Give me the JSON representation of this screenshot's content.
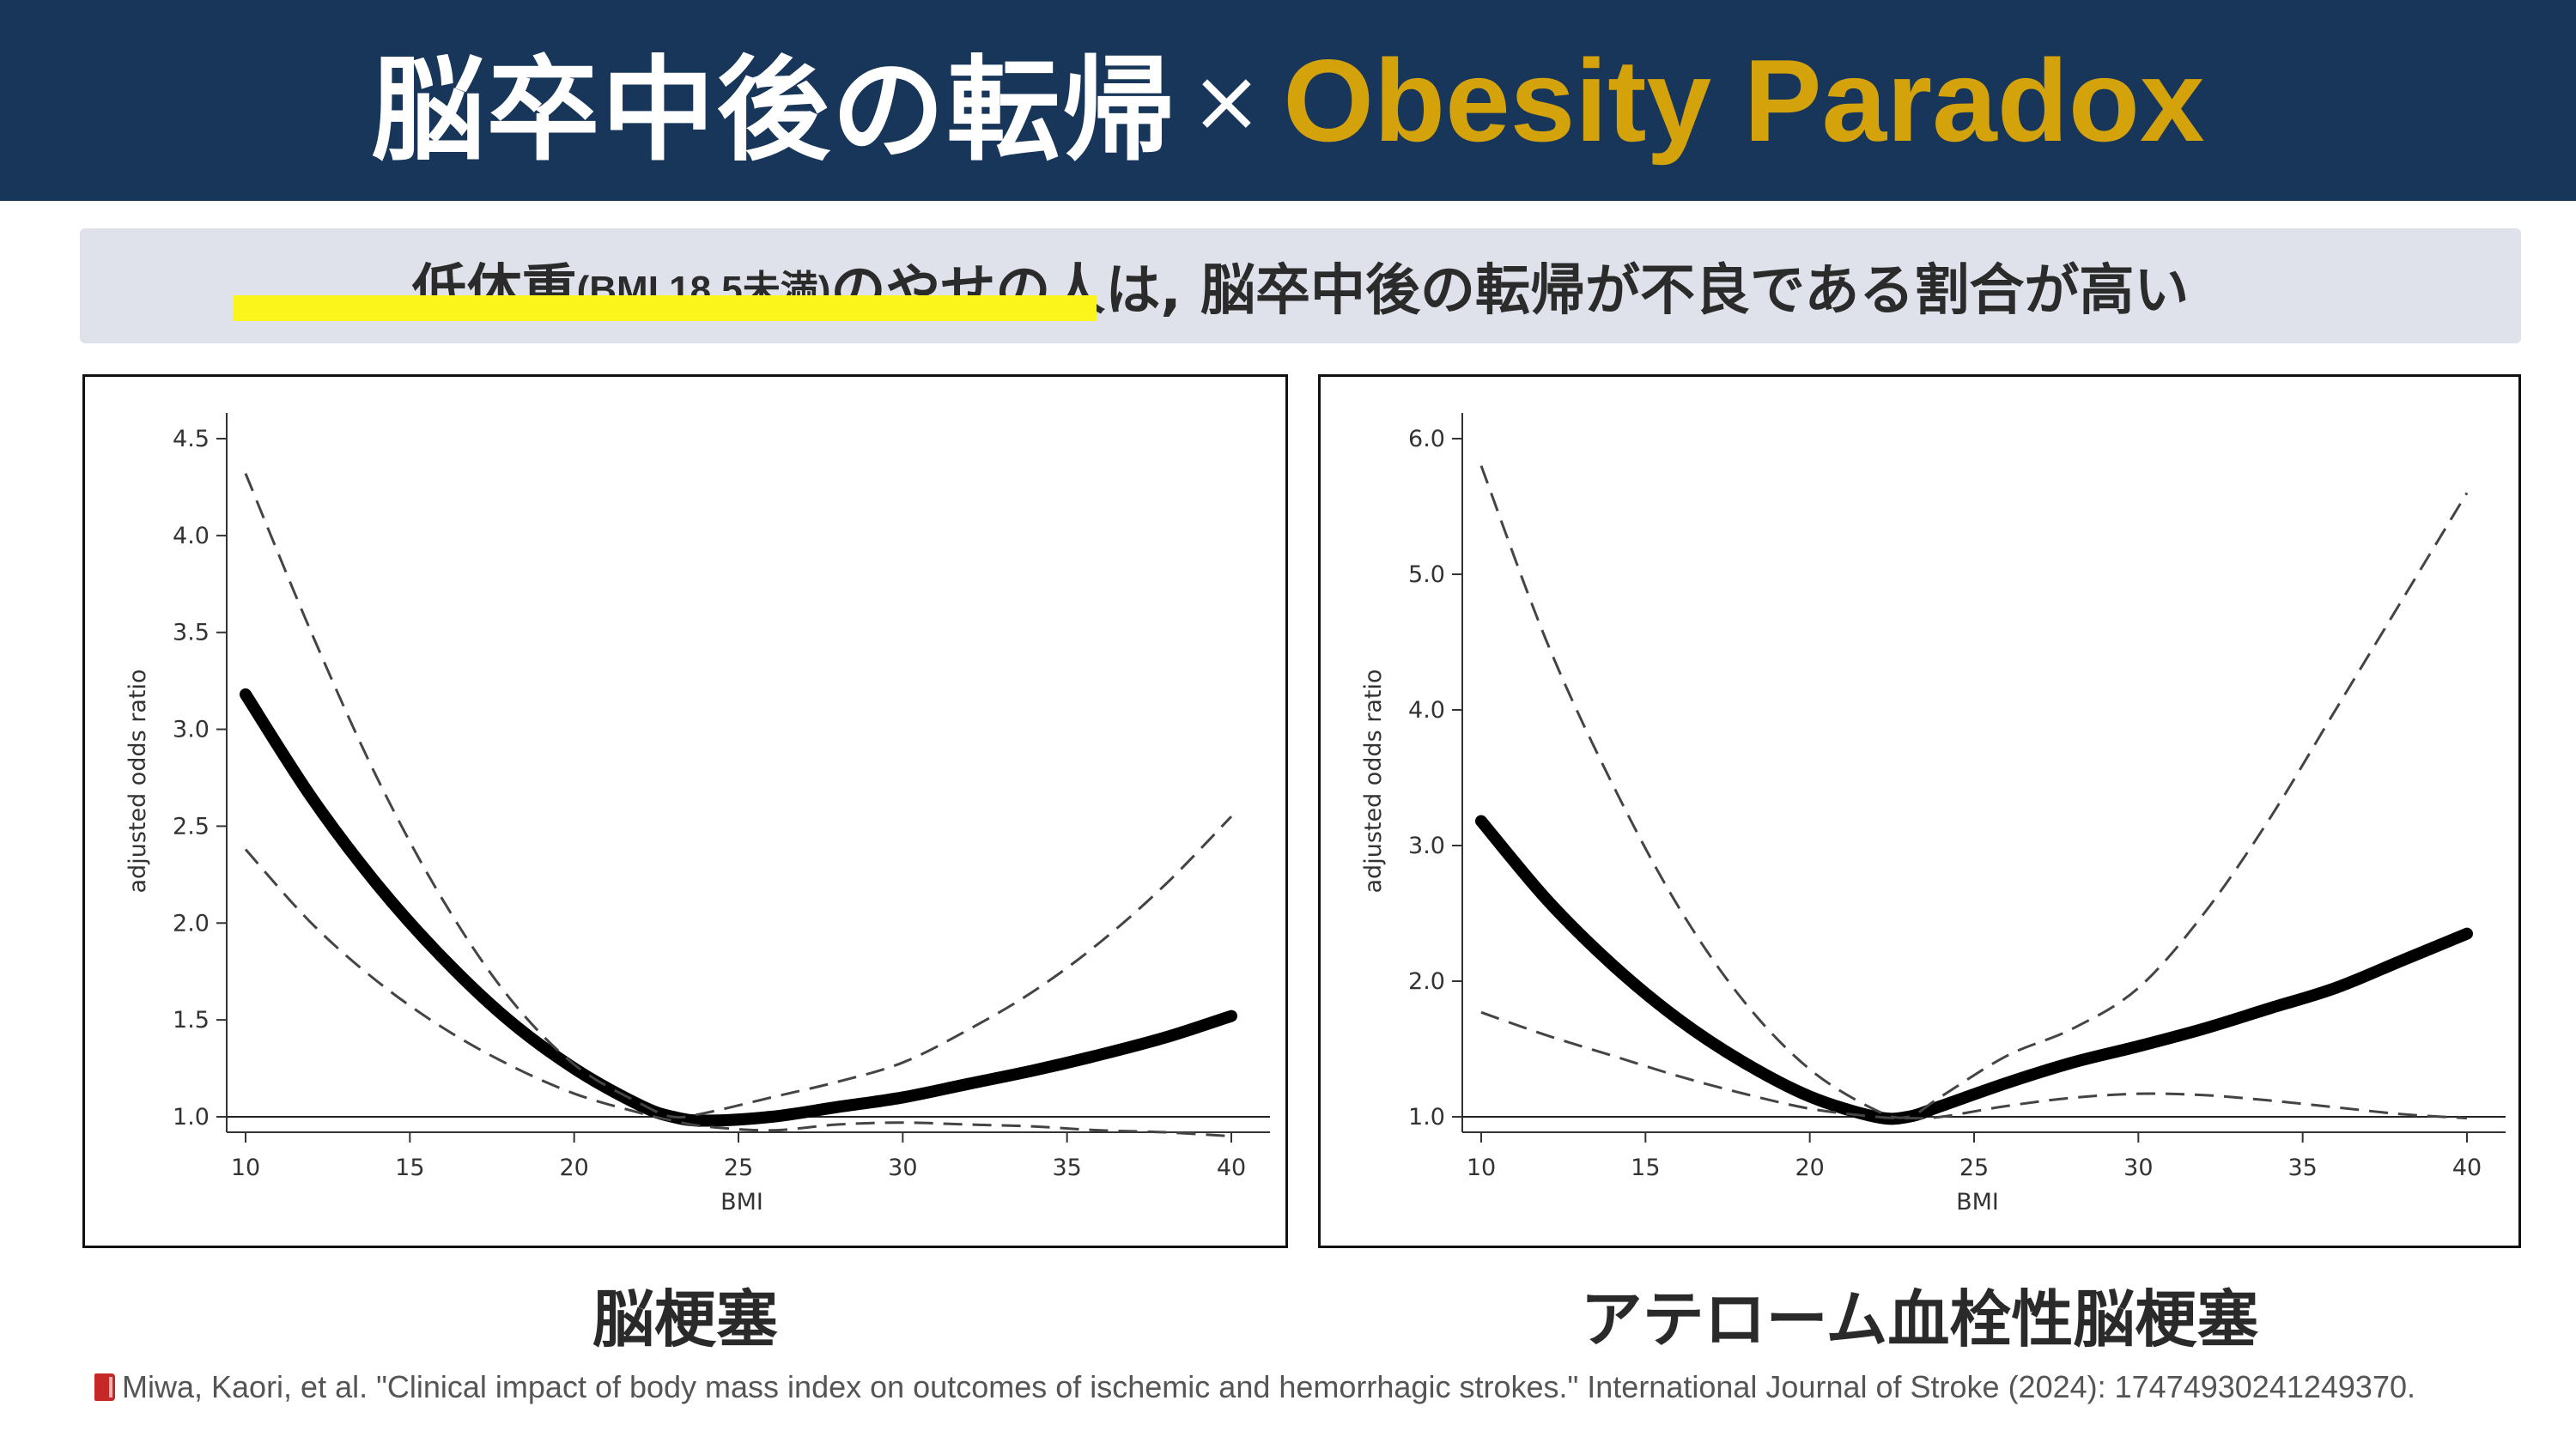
{
  "header": {
    "title_main": "脳卒中後の転帰",
    "title_times": "×",
    "title_accent": "Obesity Paradox"
  },
  "subtitle": {
    "part1": "低体重",
    "part2": "(BMI 18.5未満)",
    "part3": "のやせの人は, 脳卒中後の転帰が不良である割合が高い"
  },
  "colors": {
    "header_bg": "#17365a",
    "accent": "#d4a20b",
    "subtitle_bg": "#dfe2ea",
    "highlight": "#fbf51b"
  },
  "panels": [
    {
      "caption": "脳梗塞"
    },
    {
      "caption": "アテローム血栓性脳梗塞"
    }
  ],
  "citation": {
    "icon": "book-icon",
    "text": "Miwa, Kaori, et al. \"Clinical impact of body mass index on outcomes of ischemic and hemorrhagic strokes.\" International Journal of Stroke (2024): 17474930241249370."
  },
  "chart_data": [
    {
      "type": "line",
      "xlabel": "BMI",
      "ylabel": "adjusted odds ratio",
      "xlim": [
        10,
        40
      ],
      "ylim": [
        1.0,
        4.5
      ],
      "xticks": [
        "10",
        "15",
        "20",
        "25",
        "30",
        "35",
        "40"
      ],
      "yticks": [
        "1.0",
        "1.5",
        "2.0",
        "2.5",
        "3.0",
        "3.5",
        "4.0",
        "4.5"
      ],
      "reference_line": 1.0,
      "grid": false,
      "series": [
        {
          "style": "solid-thick",
          "x": [
            10,
            12,
            14,
            16,
            18,
            20,
            22,
            23,
            24,
            26,
            28,
            30,
            32,
            34,
            36,
            38,
            40
          ],
          "y": [
            3.18,
            2.65,
            2.2,
            1.82,
            1.5,
            1.25,
            1.06,
            1.0,
            0.98,
            1.0,
            1.05,
            1.1,
            1.17,
            1.24,
            1.32,
            1.41,
            1.52
          ]
        },
        {
          "style": "dashed",
          "x": [
            10,
            12,
            14,
            16,
            18,
            20,
            22,
            23,
            24,
            26,
            28,
            30,
            32,
            34,
            36,
            38,
            40
          ],
          "y": [
            4.32,
            3.5,
            2.75,
            2.12,
            1.62,
            1.27,
            1.07,
            1.0,
            1.02,
            1.1,
            1.18,
            1.28,
            1.45,
            1.65,
            1.9,
            2.2,
            2.55
          ]
        },
        {
          "style": "dashed",
          "x": [
            10,
            12,
            14,
            16,
            18,
            20,
            22,
            23,
            24,
            26,
            28,
            30,
            32,
            34,
            36,
            38,
            40
          ],
          "y": [
            2.38,
            2.0,
            1.7,
            1.46,
            1.27,
            1.12,
            1.02,
            0.98,
            0.95,
            0.93,
            0.96,
            0.97,
            0.96,
            0.95,
            0.93,
            0.92,
            0.9
          ]
        }
      ]
    },
    {
      "type": "line",
      "xlabel": "BMI",
      "ylabel": "adjusted odds ratio",
      "xlim": [
        10,
        40
      ],
      "ylim": [
        1.0,
        6.0
      ],
      "xticks": [
        "10",
        "15",
        "20",
        "25",
        "30",
        "35",
        "40"
      ],
      "yticks": [
        "1.0",
        "2.0",
        "3.0",
        "4.0",
        "5.0",
        "6.0"
      ],
      "reference_line": 1.0,
      "grid": false,
      "series": [
        {
          "style": "solid-thick",
          "x": [
            10,
            12,
            14,
            16,
            18,
            20,
            22,
            23,
            24,
            26,
            28,
            30,
            32,
            34,
            36,
            38,
            40
          ],
          "y": [
            3.18,
            2.6,
            2.12,
            1.72,
            1.4,
            1.15,
            1.0,
            1.0,
            1.08,
            1.25,
            1.4,
            1.52,
            1.65,
            1.8,
            1.95,
            2.15,
            2.35
          ]
        },
        {
          "style": "dashed",
          "x": [
            10,
            12,
            14,
            16,
            18,
            20,
            22,
            23,
            24,
            26,
            28,
            30,
            32,
            34,
            36,
            38,
            40
          ],
          "y": [
            5.8,
            4.5,
            3.45,
            2.55,
            1.85,
            1.35,
            1.05,
            1.0,
            1.15,
            1.45,
            1.65,
            1.95,
            2.5,
            3.2,
            4.0,
            4.8,
            5.6
          ]
        },
        {
          "style": "dashed",
          "x": [
            10,
            12,
            14,
            16,
            18,
            20,
            22,
            23,
            24,
            26,
            28,
            30,
            32,
            34,
            36,
            38,
            40
          ],
          "y": [
            1.77,
            1.6,
            1.45,
            1.3,
            1.17,
            1.06,
            1.0,
            0.99,
            1.0,
            1.08,
            1.14,
            1.17,
            1.16,
            1.12,
            1.07,
            1.02,
            0.99
          ]
        }
      ]
    }
  ]
}
